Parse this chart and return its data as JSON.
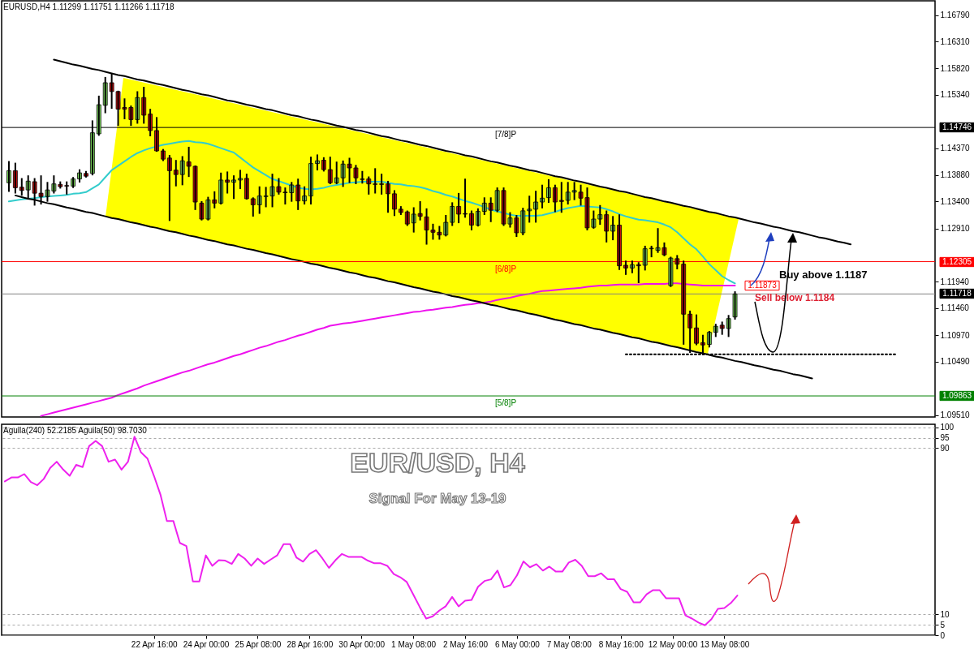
{
  "chart_data": [
    {
      "type": "candlestick",
      "title": "EURUSD,H4  1.11299 1.11751 1.11266 1.11718",
      "tick_labels": "y",
      "categories": [
        null,
        null,
        null,
        null,
        null,
        null,
        null,
        null,
        null,
        null,
        null,
        null,
        null,
        null,
        null,
        null,
        null,
        null,
        null,
        null,
        null,
        null,
        null,
        null,
        null,
        null,
        null,
        null,
        null,
        null,
        null,
        null,
        null,
        null,
        null,
        null,
        null,
        null,
        null,
        null,
        null,
        null,
        null,
        null,
        null,
        null,
        null,
        null,
        null,
        null,
        null,
        null,
        null,
        null,
        null,
        null,
        null,
        null,
        null,
        null,
        null,
        null,
        null,
        null,
        null,
        null,
        null,
        null,
        null,
        null,
        null,
        null,
        null,
        null,
        null,
        null,
        null,
        null,
        null,
        null,
        null,
        null,
        null,
        null,
        null,
        null,
        null,
        null,
        null,
        null,
        null,
        null,
        null,
        null,
        null,
        null,
        null,
        null,
        null,
        null,
        null,
        null,
        null,
        null,
        null,
        null,
        null,
        null,
        null,
        null,
        null,
        null,
        null,
        null,
        null,
        null,
        null,
        null,
        null,
        null,
        null,
        null,
        null,
        null,
        null,
        null,
        null,
        null,
        null,
        null,
        null,
        null,
        null,
        null,
        null,
        null,
        null,
        null,
        null,
        null,
        null,
        null,
        null,
        null
      ],
      "ohlc": [
        [
          1.1374,
          1.1412,
          1.1359,
          1.1396
        ],
        [
          1.1396,
          1.1409,
          1.1356,
          1.1365
        ],
        [
          1.1366,
          1.1381,
          1.1352,
          1.136
        ],
        [
          1.1361,
          1.1386,
          1.1347,
          1.1377
        ],
        [
          1.1376,
          1.1381,
          1.1334,
          1.1355
        ],
        [
          1.1355,
          1.1386,
          1.1336,
          1.1349
        ],
        [
          1.1349,
          1.1374,
          1.1341,
          1.1361
        ],
        [
          1.1359,
          1.1386,
          1.1356,
          1.1372
        ],
        [
          1.1371,
          1.1375,
          1.1365,
          1.1367
        ],
        [
          1.1369,
          1.1375,
          1.1354,
          1.1368
        ],
        [
          1.1368,
          1.1383,
          1.1366,
          1.1381
        ],
        [
          1.1381,
          1.1397,
          1.1376,
          1.1392
        ],
        [
          1.1391,
          1.1394,
          1.1385,
          1.1386
        ],
        [
          1.1391,
          1.1486,
          1.1389,
          1.1465
        ],
        [
          1.1463,
          1.1531,
          1.1461,
          1.1516
        ],
        [
          1.1515,
          1.1565,
          1.1502,
          1.1556
        ],
        [
          1.1556,
          1.1572,
          1.151,
          1.154
        ],
        [
          1.154,
          1.154,
          1.1479,
          1.1508
        ],
        [
          1.1511,
          1.1526,
          1.1491,
          1.1508
        ],
        [
          1.1511,
          1.1513,
          1.1479,
          1.1489
        ],
        [
          1.1489,
          1.1539,
          1.1483,
          1.1529
        ],
        [
          1.1529,
          1.1547,
          1.1483,
          1.1497
        ],
        [
          1.1499,
          1.1507,
          1.146,
          1.1469
        ],
        [
          1.1469,
          1.1492,
          1.1432,
          1.1432
        ],
        [
          1.1432,
          1.1434,
          1.1415,
          1.1417
        ],
        [
          1.1419,
          1.1423,
          1.1306,
          1.1396
        ],
        [
          1.1397,
          1.1414,
          1.1369,
          1.1389
        ],
        [
          1.1389,
          1.1421,
          1.1371,
          1.1414
        ],
        [
          1.1412,
          1.1438,
          1.1386,
          1.1404
        ],
        [
          1.1404,
          1.1404,
          1.1326,
          1.1339
        ],
        [
          1.1337,
          1.1339,
          1.1307,
          1.1308
        ],
        [
          1.1308,
          1.1347,
          1.1307,
          1.1343
        ],
        [
          1.1343,
          1.1357,
          1.1329,
          1.1337
        ],
        [
          1.1337,
          1.1391,
          1.1336,
          1.1379
        ],
        [
          1.1379,
          1.1393,
          1.1356,
          1.1375
        ],
        [
          1.1375,
          1.1386,
          1.1346,
          1.1379
        ],
        [
          1.1379,
          1.1396,
          1.1364,
          1.1382
        ],
        [
          1.1382,
          1.1389,
          1.1345,
          1.1345
        ],
        [
          1.1345,
          1.1346,
          1.1314,
          1.1334
        ],
        [
          1.1334,
          1.1366,
          1.1319,
          1.135
        ],
        [
          1.1349,
          1.1365,
          1.1331,
          1.135
        ],
        [
          1.135,
          1.1389,
          1.1331,
          1.1367
        ],
        [
          1.1367,
          1.1381,
          1.1354,
          1.1357
        ],
        [
          1.1357,
          1.1364,
          1.1336,
          1.1356
        ],
        [
          1.1356,
          1.1374,
          1.1341,
          1.137
        ],
        [
          1.137,
          1.138,
          1.1326,
          1.1341
        ],
        [
          1.1341,
          1.1366,
          1.1336,
          1.135
        ],
        [
          1.135,
          1.142,
          1.1336,
          1.1409
        ],
        [
          1.1409,
          1.1424,
          1.1398,
          1.1414
        ],
        [
          1.1415,
          1.1419,
          1.1396,
          1.1398
        ],
        [
          1.1398,
          1.142,
          1.1373,
          1.1374
        ],
        [
          1.1374,
          1.1411,
          1.1373,
          1.1383
        ],
        [
          1.1383,
          1.1413,
          1.1368,
          1.1408
        ],
        [
          1.1408,
          1.1418,
          1.1375,
          1.1401
        ],
        [
          1.1401,
          1.1405,
          1.1373,
          1.1383
        ],
        [
          1.1381,
          1.1394,
          1.1374,
          1.138
        ],
        [
          1.1381,
          1.1384,
          1.1354,
          1.1372
        ],
        [
          1.1372,
          1.1399,
          1.1356,
          1.1371
        ],
        [
          1.1372,
          1.1389,
          1.1354,
          1.1371
        ],
        [
          1.1372,
          1.1376,
          1.1321,
          1.1354
        ],
        [
          1.1354,
          1.1359,
          1.1315,
          1.1326
        ],
        [
          1.1326,
          1.133,
          1.1317,
          1.132
        ],
        [
          1.1321,
          1.1322,
          1.1297,
          1.1299
        ],
        [
          1.1301,
          1.1328,
          1.1285,
          1.1317
        ],
        [
          1.1318,
          1.1339,
          1.1307,
          1.1313
        ],
        [
          1.1312,
          1.1326,
          1.1263,
          1.1288
        ],
        [
          1.1288,
          1.1298,
          1.1272,
          1.1284
        ],
        [
          1.1284,
          1.1294,
          1.1272,
          1.1279
        ],
        [
          1.1279,
          1.1314,
          1.1278,
          1.1302
        ],
        [
          1.1302,
          1.1337,
          1.1297,
          1.1331
        ],
        [
          1.1331,
          1.1354,
          1.1302,
          1.1317
        ],
        [
          1.1318,
          1.138,
          1.1312,
          1.1317
        ],
        [
          1.1318,
          1.1322,
          1.1289,
          1.1297
        ],
        [
          1.1297,
          1.1326,
          1.1296,
          1.1322
        ],
        [
          1.1322,
          1.1346,
          1.1317,
          1.1337
        ],
        [
          1.1337,
          1.1346,
          1.1304,
          1.1324
        ],
        [
          1.1324,
          1.1364,
          1.1322,
          1.136
        ],
        [
          1.136,
          1.1364,
          1.1297,
          1.1299
        ],
        [
          1.1299,
          1.1319,
          1.1294,
          1.131
        ],
        [
          1.131,
          1.1314,
          1.1277,
          1.1283
        ],
        [
          1.1283,
          1.1327,
          1.128,
          1.1323
        ],
        [
          1.1323,
          1.1349,
          1.1303,
          1.1326
        ],
        [
          1.1326,
          1.1358,
          1.1303,
          1.1339
        ],
        [
          1.1339,
          1.1369,
          1.1329,
          1.1346
        ],
        [
          1.1347,
          1.1379,
          1.1339,
          1.1365
        ],
        [
          1.1365,
          1.1369,
          1.1322,
          1.1339
        ],
        [
          1.1342,
          1.1374,
          1.1321,
          1.134
        ],
        [
          1.1342,
          1.1374,
          1.1336,
          1.1357
        ],
        [
          1.1357,
          1.1374,
          1.1344,
          1.136
        ],
        [
          1.1357,
          1.1369,
          1.1334,
          1.1346
        ],
        [
          1.1347,
          1.1364,
          1.1289,
          1.1292
        ],
        [
          1.1293,
          1.1322,
          1.1292,
          1.1308
        ],
        [
          1.1308,
          1.1332,
          1.1299,
          1.1316
        ],
        [
          1.1316,
          1.1322,
          1.1267,
          1.1286
        ],
        [
          1.1286,
          1.1312,
          1.1271,
          1.1297
        ],
        [
          1.1297,
          1.1315,
          1.1217,
          1.1223
        ],
        [
          1.1224,
          1.1231,
          1.1208,
          1.1219
        ],
        [
          1.1219,
          1.1231,
          1.1211,
          1.1225
        ],
        [
          1.1225,
          1.1228,
          1.1193,
          1.1223
        ],
        [
          1.1224,
          1.1258,
          1.1216,
          1.1254
        ],
        [
          1.1254,
          1.1258,
          1.124,
          1.1255
        ],
        [
          1.1251,
          1.129,
          1.1248,
          1.1256
        ],
        [
          1.1256,
          1.1264,
          1.1242,
          1.1243
        ],
        [
          1.1187,
          1.1238,
          1.1186,
          1.1237
        ],
        [
          1.1236,
          1.1241,
          1.1218,
          1.1226
        ],
        [
          1.1226,
          1.1231,
          1.1081,
          1.1135
        ],
        [
          1.1135,
          1.114,
          1.1066,
          1.111
        ],
        [
          1.111,
          1.1133,
          1.108,
          1.1082
        ],
        [
          1.1083,
          1.1096,
          1.1062,
          1.1079
        ],
        [
          1.108,
          1.1103,
          1.1076,
          1.1102
        ],
        [
          1.1102,
          1.1116,
          1.1095,
          1.1113
        ],
        [
          1.1115,
          1.112,
          1.1099,
          1.1109
        ],
        [
          1.1109,
          1.1132,
          1.1095,
          1.1127
        ],
        [
          1.11299,
          1.11751,
          1.11266,
          1.11718
        ],
        null,
        null,
        null,
        null,
        null,
        null,
        null,
        null,
        null,
        null,
        null,
        null,
        null,
        null,
        null,
        null,
        null,
        null,
        null,
        null,
        null,
        null,
        null,
        null,
        null,
        null,
        null,
        null,
        null,
        null
      ],
      "series": [
        {
          "type": "line",
          "color": "#33cccc",
          "values": [
            1.134,
            1.1342,
            1.1344,
            1.1345,
            1.1346,
            1.1348,
            1.1349,
            1.135,
            1.1351,
            1.1352,
            1.1354,
            1.1355,
            1.1357,
            1.1364,
            1.1371,
            1.1384,
            1.1397,
            1.1405,
            1.1413,
            1.1421,
            1.1428,
            1.1433,
            1.1437,
            1.144,
            1.1443,
            1.1445,
            1.1447,
            1.1449,
            1.145,
            1.1448,
            1.1447,
            1.1445,
            1.1441,
            1.1437,
            1.1433,
            1.1429,
            1.142,
            1.1411,
            1.1402,
            1.1395,
            1.1388,
            1.1381,
            1.1377,
            1.1373,
            1.1369,
            1.1365,
            1.1363,
            1.1362,
            1.1363,
            1.1365,
            1.1368,
            1.137,
            1.1372,
            1.1374,
            1.1375,
            1.1376,
            1.1376,
            1.1376,
            1.1376,
            1.1374,
            1.1372,
            1.1371,
            1.1369,
            1.1368,
            1.1366,
            1.1363,
            1.1359,
            1.1356,
            1.1352,
            1.1349,
            1.1345,
            1.1341,
            1.1338,
            1.1334,
            1.133,
            1.1325,
            1.1322,
            1.1319,
            1.1316,
            1.1314,
            1.1314,
            1.1314,
            1.1314,
            1.1315,
            1.1318,
            1.1321,
            1.1325,
            1.1328,
            1.133,
            1.1332,
            1.1331,
            1.133,
            1.1329,
            1.1326,
            1.1322,
            1.1317,
            1.1313,
            1.131,
            1.1307,
            1.1306,
            1.1304,
            1.1302,
            1.1298,
            1.1293,
            1.1284,
            1.1273,
            1.1262,
            1.1253,
            1.124,
            1.1226,
            1.1215,
            1.1204,
            1.1197,
            1.1191,
            null,
            null,
            null,
            null,
            null,
            null,
            null,
            null,
            null,
            null,
            null,
            null,
            null,
            null,
            null,
            null,
            null,
            null,
            null,
            null,
            null,
            null,
            null,
            null,
            null,
            null,
            null,
            null,
            null,
            null
          ]
        },
        {
          "type": "line",
          "color": "#ee11ee",
          "values": [
            null,
            null,
            null,
            null,
            null,
            1.095,
            1.0953,
            1.0956,
            1.0959,
            1.0962,
            1.0965,
            1.0968,
            1.0971,
            1.0974,
            1.0977,
            1.098,
            1.0983,
            1.0988,
            1.0992,
            1.0996,
            1.1,
            1.1005,
            1.1009,
            1.1013,
            1.1017,
            1.1021,
            1.1025,
            1.1029,
            1.1032,
            1.1036,
            1.104,
            1.1044,
            1.1047,
            1.1051,
            1.1055,
            1.1059,
            1.1062,
            1.1066,
            1.107,
            1.1074,
            1.1077,
            1.1081,
            1.1085,
            1.1088,
            1.1092,
            1.1096,
            1.1099,
            1.1103,
            1.1107,
            1.111,
            1.1114,
            1.1116,
            1.1118,
            1.1119,
            1.1121,
            1.1123,
            1.1125,
            1.1127,
            1.1129,
            1.1131,
            1.1133,
            1.1135,
            1.1137,
            1.1139,
            1.114,
            1.1142,
            1.1143,
            1.1145,
            1.1147,
            1.1148,
            1.115,
            1.1152,
            1.1153,
            1.1155,
            1.1156,
            1.1158,
            1.1161,
            1.1163,
            1.1165,
            1.1168,
            1.117,
            1.1172,
            1.1175,
            1.1177,
            1.1178,
            1.1179,
            1.118,
            1.1181,
            1.1182,
            1.1183,
            1.1185,
            1.1186,
            1.1187,
            1.1187,
            1.1188,
            1.1189,
            1.1189,
            1.1189,
            1.1189,
            1.119,
            1.119,
            1.119,
            1.119,
            1.1191,
            1.1191,
            1.119,
            1.1189,
            1.1188,
            1.1187,
            1.1187,
            1.1187,
            1.1187,
            1.1187,
            1.1187,
            null,
            null,
            null,
            null,
            null,
            null,
            null,
            null,
            null,
            null,
            null,
            null,
            null,
            null,
            null,
            null,
            null,
            null,
            null,
            null,
            null,
            null,
            null,
            null,
            null,
            null,
            null,
            null,
            null,
            null
          ]
        },
        {
          "type": "line",
          "color": "#000000",
          "values": [
            null,
            null,
            null,
            null,
            null,
            null,
            null,
            1.1598,
            1.1595,
            1.1592,
            1.1589,
            1.1587,
            1.1584,
            1.1581,
            1.1579,
            1.1576,
            1.1573,
            1.157,
            1.1568,
            1.1565,
            1.1562,
            1.156,
            1.1557,
            1.1554,
            1.1552,
            1.1549,
            1.1546,
            1.1543,
            1.1541,
            1.1538,
            1.1535,
            1.1533,
            1.153,
            1.1527,
            1.1524,
            1.1522,
            1.1519,
            1.1516,
            1.1514,
            1.1511,
            1.1508,
            1.1506,
            1.1503,
            1.15,
            1.1497,
            1.1495,
            1.1492,
            1.1489,
            1.1487,
            1.1484,
            1.1481,
            1.1478,
            1.1476,
            1.1473,
            1.147,
            1.1468,
            1.1465,
            1.1462,
            1.1459,
            1.1457,
            1.1454,
            1.1451,
            1.1449,
            1.1446,
            1.1443,
            1.1441,
            1.1438,
            1.1435,
            1.1432,
            1.143,
            1.1427,
            1.1424,
            1.1422,
            1.1419,
            1.1416,
            1.1413,
            1.1411,
            1.1408,
            1.1405,
            1.1403,
            1.14,
            1.1397,
            1.1395,
            1.1392,
            1.1389,
            1.1386,
            1.1384,
            1.1381,
            1.1378,
            1.1376,
            1.1373,
            1.137,
            1.1367,
            1.1365,
            1.1362,
            1.1359,
            1.1357,
            1.1354,
            1.1351,
            1.1348,
            1.1346,
            1.1343,
            1.134,
            1.1338,
            1.1335,
            1.1332,
            1.133,
            1.1327,
            1.1324,
            1.1321,
            1.1319,
            1.1316,
            1.1313,
            1.1311,
            1.1308,
            1.1305,
            1.1302,
            1.13,
            1.1297,
            1.1294,
            1.1292,
            1.1289,
            1.1286,
            1.1284,
            1.1281,
            1.1278,
            1.1275,
            1.1273,
            1.127,
            1.1267,
            1.1265,
            1.1262,
            null,
            null,
            null,
            null,
            null,
            null,
            null,
            null,
            null,
            null,
            null,
            null
          ]
        },
        {
          "type": "line",
          "color": "#000000",
          "values": [
            null,
            1.1351,
            1.1348,
            1.1345,
            1.1343,
            1.134,
            1.1337,
            1.1335,
            1.1332,
            1.1329,
            1.1327,
            1.1324,
            1.1321,
            1.1319,
            1.1316,
            1.1313,
            1.131,
            1.1308,
            1.1305,
            1.1302,
            1.13,
            1.1297,
            1.1294,
            1.1292,
            1.1289,
            1.1286,
            1.1284,
            1.1281,
            1.1278,
            1.1276,
            1.1273,
            1.127,
            1.1268,
            1.1265,
            1.1262,
            1.126,
            1.1257,
            1.1254,
            1.1252,
            1.1249,
            1.1246,
            1.1244,
            1.1241,
            1.1238,
            1.1235,
            1.1233,
            1.123,
            1.1227,
            1.1225,
            1.1222,
            1.1219,
            1.1217,
            1.1214,
            1.1211,
            1.1209,
            1.1206,
            1.1203,
            1.1201,
            1.1198,
            1.1195,
            1.1193,
            1.119,
            1.1187,
            1.1184,
            1.1182,
            1.1179,
            1.1176,
            1.1174,
            1.1171,
            1.1168,
            1.1166,
            1.1163,
            1.116,
            1.1158,
            1.1155,
            1.1152,
            1.115,
            1.1147,
            1.1144,
            1.1142,
            1.1139,
            1.1136,
            1.1134,
            1.1131,
            1.1128,
            1.1125,
            1.1123,
            1.112,
            1.1117,
            1.1115,
            1.1112,
            1.1109,
            1.1107,
            1.1104,
            1.1101,
            1.1099,
            1.1096,
            1.1093,
            1.1091,
            1.1088,
            1.1085,
            1.1083,
            1.108,
            1.1077,
            1.1075,
            1.1072,
            1.1069,
            1.1066,
            1.1064,
            1.1061,
            1.1058,
            1.1056,
            1.1053,
            1.105,
            1.1048,
            1.1045,
            1.1042,
            1.104,
            1.1037,
            1.1034,
            1.1032,
            1.1029,
            1.1026,
            1.1024,
            1.1021,
            1.1018,
            null,
            null,
            null,
            null,
            null,
            null,
            null,
            null,
            null,
            null,
            null,
            null,
            null,
            null,
            null,
            null,
            null,
            null
          ]
        },
        {
          "type": "line",
          "color": "#000000",
          "line_style": "dotted",
          "values": [
            null,
            null,
            null,
            null,
            null,
            null,
            null,
            null,
            null,
            null,
            null,
            null,
            null,
            null,
            null,
            null,
            null,
            null,
            null,
            null,
            null,
            null,
            null,
            null,
            null,
            null,
            null,
            null,
            null,
            null,
            null,
            null,
            null,
            null,
            null,
            null,
            null,
            null,
            null,
            null,
            null,
            null,
            null,
            null,
            null,
            null,
            null,
            null,
            null,
            null,
            null,
            null,
            null,
            null,
            null,
            null,
            null,
            null,
            null,
            null,
            null,
            null,
            null,
            null,
            null,
            null,
            null,
            null,
            null,
            null,
            null,
            null,
            null,
            null,
            null,
            null,
            null,
            null,
            null,
            null,
            null,
            null,
            null,
            null,
            null,
            null,
            null,
            null,
            null,
            null,
            null,
            null,
            null,
            null,
            null,
            null,
            1.1062,
            1.1062,
            1.1062,
            1.1062,
            1.1062,
            1.1062,
            1.1062,
            1.1062,
            1.1062,
            1.1062,
            1.1062,
            1.1062,
            1.1062,
            1.1062,
            1.1062,
            1.1062,
            1.1062,
            1.1062,
            1.1062,
            1.1062,
            1.1062,
            1.1062,
            1.1062,
            1.1062,
            1.1062,
            1.1062,
            1.1062,
            1.1062,
            1.1062,
            1.1062,
            1.1062,
            1.1062,
            1.1062,
            1.1062,
            1.1062,
            1.1062,
            1.1062,
            1.1062,
            1.1062,
            1.1062,
            1.1062,
            1.1062,
            1.1062,
            null,
            null,
            null,
            null,
            null
          ]
        }
      ],
      "ref_lines": [
        {
          "axis": "y",
          "value": 1.14746,
          "label": "[7/8]P",
          "color": "#000000"
        },
        {
          "axis": "y",
          "value": 1.12305,
          "label": "[6/8]P",
          "color": "#ff0000"
        },
        {
          "axis": "y",
          "value": 1.09863,
          "label": "[5/8]P",
          "color": "#008000"
        },
        {
          "axis": "y",
          "value": 1.11718,
          "color": "#808080"
        }
      ],
      "annotations": [
        "Buy above 1.1187",
        "Sell below 1.1184",
        "1.11873",
        "1.14746",
        "1.12305",
        "1.09863",
        "1.11718"
      ],
      "ylim": [
        1.0948,
        1.1705
      ],
      "yticks": [
        {
          "value": 1.1679,
          "label": "1.16790"
        },
        {
          "value": 1.1631,
          "label": "1.16310"
        },
        {
          "value": 1.1582,
          "label": "1.15820"
        },
        {
          "value": 1.1534,
          "label": "1.15340"
        },
        {
          "value": 1.1437,
          "label": "1.14370"
        },
        {
          "value": 1.1388,
          "label": "1.13880"
        },
        {
          "value": 1.134,
          "label": "1.13400"
        },
        {
          "value": 1.1291,
          "label": "1.12910"
        },
        {
          "value": 1.1194,
          "label": "1.11940"
        },
        {
          "value": 1.1146,
          "label": "1.11460"
        },
        {
          "value": 1.1097,
          "label": "1.10970"
        },
        {
          "value": 1.1049,
          "label": "1.10490"
        },
        {
          "value": 1.0951,
          "label": "1.09510"
        }
      ]
    },
    {
      "type": "line",
      "title": "Aguila(240) 52.2185  Aguila(50) 98.7030",
      "grid": "y",
      "categories": [
        null,
        null,
        null,
        null,
        null,
        null,
        null,
        null,
        null,
        null,
        null,
        null,
        null,
        null,
        null,
        null,
        null,
        null,
        null,
        null,
        null,
        null,
        null,
        "22 Apr 16:00",
        null,
        null,
        null,
        null,
        null,
        null,
        null,
        "24 Apr 00:00",
        null,
        null,
        null,
        null,
        null,
        null,
        null,
        "25 Apr 08:00",
        null,
        null,
        null,
        null,
        null,
        null,
        null,
        "28 Apr 16:00",
        null,
        null,
        null,
        null,
        null,
        null,
        null,
        "30 Apr 00:00",
        null,
        null,
        null,
        null,
        null,
        null,
        null,
        "1 May 08:00",
        null,
        null,
        null,
        null,
        null,
        null,
        null,
        "2 May 16:00",
        null,
        null,
        null,
        null,
        null,
        null,
        null,
        "6 May 00:00",
        null,
        null,
        null,
        null,
        null,
        null,
        null,
        "7 May 08:00",
        null,
        null,
        null,
        null,
        null,
        null,
        null,
        "8 May 16:00",
        null,
        null,
        null,
        null,
        null,
        null,
        null,
        "12 May 00:00",
        null,
        null,
        null,
        null,
        null,
        null,
        null,
        "13 May 08:00",
        null,
        null,
        null,
        null,
        null,
        null,
        null,
        null,
        null,
        null,
        null,
        null,
        null,
        null,
        null,
        null,
        null,
        null,
        null,
        null,
        null,
        null,
        null,
        null,
        null,
        null,
        null,
        null,
        null,
        null,
        null,
        null
      ],
      "series": [
        {
          "color": "#ee22ee",
          "values": [
            74.0,
            75.9,
            75.9,
            77.5,
            73.7,
            72.2,
            75.2,
            80.5,
            83.5,
            79.7,
            76.7,
            82.0,
            80.9,
            91.0,
            93.5,
            91.0,
            83.5,
            84.5,
            79.7,
            83.5,
            95.5,
            88.0,
            85.0,
            76.7,
            67.7,
            54.9,
            54.9,
            44.4,
            42.9,
            25.9,
            25.9,
            38.4,
            33.4,
            36.1,
            35.9,
            34.3,
            39.1,
            36.9,
            33.4,
            36.9,
            34.3,
            36.4,
            38.4,
            43.8,
            43.8,
            37.3,
            35.4,
            39.1,
            40.9,
            36.9,
            32.4,
            36.1,
            39.1,
            37.7,
            37.7,
            37.7,
            35.9,
            34.6,
            34.6,
            33.4,
            29.4,
            27.9,
            25.6,
            19.6,
            13.6,
            8.0,
            9.1,
            11.8,
            13.9,
            18.4,
            13.9,
            16.6,
            17.0,
            23.3,
            26.1,
            26.9,
            31.1,
            23.0,
            24.1,
            28.8,
            35.5,
            32.7,
            34.2,
            31.1,
            33.0,
            30.6,
            30.6,
            35.0,
            36.3,
            33.4,
            28.4,
            28.4,
            29.8,
            26.9,
            26.9,
            22.2,
            20.9,
            15.8,
            15.8,
            19.7,
            21.7,
            21.7,
            17.8,
            17.8,
            17.8,
            9.5,
            8.0,
            6.1,
            4.8,
            7.7,
            12.7,
            13.1,
            15.5,
            19.1,
            null,
            null,
            null,
            null,
            null,
            null,
            null,
            null,
            null,
            null,
            null,
            null,
            null,
            null,
            null,
            null,
            null,
            null,
            null,
            null,
            null,
            null,
            null,
            null,
            null,
            null,
            null,
            null,
            null,
            null
          ]
        }
      ],
      "annotations": [
        "EUR/USD, H4",
        "Signal For May 13-19"
      ],
      "ylim": [
        0,
        101.5
      ],
      "yticks": [
        0,
        5,
        10,
        90,
        95,
        100
      ]
    }
  ]
}
